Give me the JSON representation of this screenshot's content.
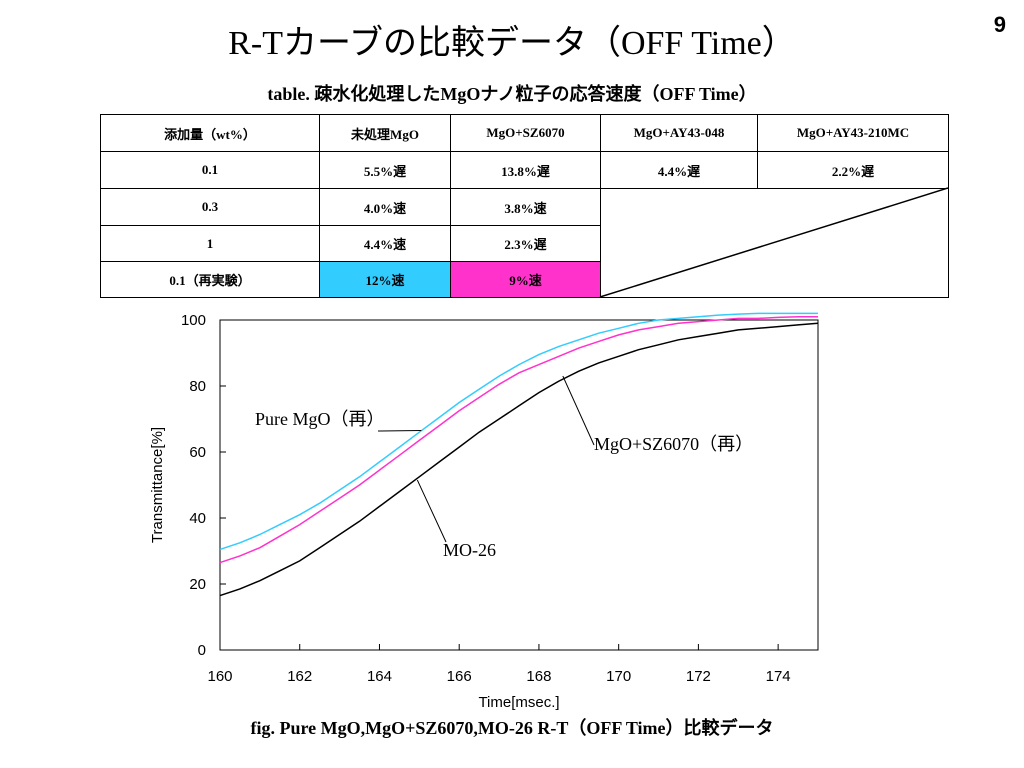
{
  "page_number": "9",
  "title": "R-Tカーブの比較データ（OFF Time）",
  "table_caption": "table. 疎水化処理したMgOナノ粒子の応答速度（OFF Time）",
  "table": {
    "headers": [
      "添加量（wt%）",
      "未処理MgO",
      "MgO+SZ6070",
      "MgO+AY43-048",
      "MgO+AY43-210MC"
    ],
    "rows": [
      [
        "0.1",
        "5.5%遅",
        "13.8%遅",
        "4.4%遅",
        "2.2%遅"
      ],
      [
        "0.3",
        "4.0%速",
        "3.8%速"
      ],
      [
        "1",
        "4.4%速",
        "2.3%遅"
      ],
      [
        "0.1（再実験）",
        "12%速",
        "9%速"
      ]
    ],
    "highlight_colors": {
      "cyan": "#33ccff",
      "magenta": "#ff33cc"
    }
  },
  "chart_data": {
    "type": "line",
    "xlabel": "Time[msec.]",
    "ylabel": "Transmittance[%]",
    "xlim": [
      160,
      175
    ],
    "ylim": [
      0,
      100
    ],
    "xticks": [
      "160",
      "162",
      "164",
      "166",
      "168",
      "170",
      "172",
      "174"
    ],
    "yticks": [
      "0",
      "20",
      "40",
      "60",
      "80",
      "100"
    ],
    "grid": false,
    "series": [
      {
        "name": "Pure MgO（再）",
        "color": "#33ccff",
        "x": [
          160,
          160.5,
          161,
          161.5,
          162,
          162.5,
          163,
          163.5,
          164,
          164.5,
          165,
          165.5,
          166,
          166.5,
          167,
          167.5,
          168,
          168.5,
          169,
          169.5,
          170,
          170.5,
          171,
          171.5,
          172,
          172.5,
          173,
          173.5,
          174,
          174.5,
          175
        ],
        "y": [
          30.5,
          32.5,
          35,
          38,
          41,
          44.5,
          48.5,
          52.5,
          57,
          61.5,
          66,
          70.5,
          75,
          79,
          83,
          86.5,
          89.5,
          92,
          94,
          96,
          97.5,
          99,
          100,
          100.5,
          101,
          101.5,
          101.8,
          102,
          102,
          102,
          102
        ]
      },
      {
        "name": "MgO+SZ6070（再）",
        "color": "#ff33cc",
        "x": [
          160,
          160.5,
          161,
          161.5,
          162,
          162.5,
          163,
          163.5,
          164,
          164.5,
          165,
          165.5,
          166,
          166.5,
          167,
          167.5,
          168,
          168.5,
          169,
          169.5,
          170,
          170.5,
          171,
          171.5,
          172,
          172.5,
          173,
          173.5,
          174,
          174.5,
          175
        ],
        "y": [
          26.5,
          28.5,
          31,
          34.5,
          38,
          42,
          46,
          50,
          54.5,
          59,
          63.5,
          68,
          72.5,
          76.5,
          80.5,
          84,
          86.5,
          89,
          91.5,
          93.5,
          95.5,
          97,
          98,
          99,
          99.5,
          100,
          100.5,
          100.5,
          100.8,
          101,
          101
        ]
      },
      {
        "name": "MO-26",
        "color": "#000000",
        "x": [
          160,
          160.5,
          161,
          161.5,
          162,
          162.5,
          163,
          163.5,
          164,
          164.5,
          165,
          165.5,
          166,
          166.5,
          167,
          167.5,
          168,
          168.5,
          169,
          169.5,
          170,
          170.5,
          171,
          171.5,
          172,
          172.5,
          173,
          173.5,
          174,
          174.5,
          175
        ],
        "y": [
          16.5,
          18.5,
          21,
          24,
          27,
          31,
          35,
          39,
          43.5,
          48,
          52.5,
          57,
          61.5,
          66,
          70,
          74,
          78,
          81.5,
          84.5,
          87,
          89,
          91,
          92.5,
          94,
          95,
          96,
          97,
          97.5,
          98,
          98.5,
          99
        ]
      }
    ],
    "annotations": [
      "Pure MgO（再）",
      "MgO+SZ6070（再）",
      "MO-26"
    ]
  },
  "fig_caption": "fig. Pure MgO,MgO+SZ6070,MO-26 R-T（OFF Time）比較データ"
}
